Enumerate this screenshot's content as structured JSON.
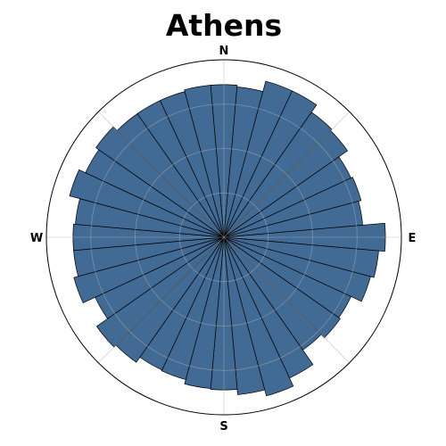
{
  "chart_data": {
    "type": "polar_bar",
    "title": "Athens",
    "direction_labels": [
      "N",
      "E",
      "S",
      "W"
    ],
    "theta_zero": "north",
    "theta_direction": "clockwise",
    "bin_count": 36,
    "bin_width_deg": 10,
    "bin_centers_deg": [
      0,
      10,
      20,
      30,
      40,
      50,
      60,
      70,
      80,
      90,
      100,
      110,
      120,
      130,
      140,
      150,
      160,
      170,
      180,
      190,
      200,
      210,
      220,
      230,
      240,
      250,
      260,
      270,
      280,
      290,
      300,
      310,
      320,
      330,
      340,
      350
    ],
    "values": [
      172,
      170,
      182,
      182,
      172,
      170,
      158,
      160,
      157,
      182,
      175,
      171,
      158,
      160,
      155,
      175,
      185,
      178,
      172,
      171,
      166,
      165,
      172,
      175,
      160,
      175,
      170,
      170,
      168,
      180,
      172,
      176,
      170,
      170,
      170,
      172
    ],
    "rlim": [
      0,
      200
    ],
    "r_grid": [
      50,
      100,
      150
    ],
    "angle_grid_deg": [
      0,
      45,
      90,
      135,
      180,
      225,
      270,
      315
    ],
    "bar_color": "#416a95",
    "bar_edge_color": "#000000",
    "grid_color": "#b0b0b0"
  }
}
